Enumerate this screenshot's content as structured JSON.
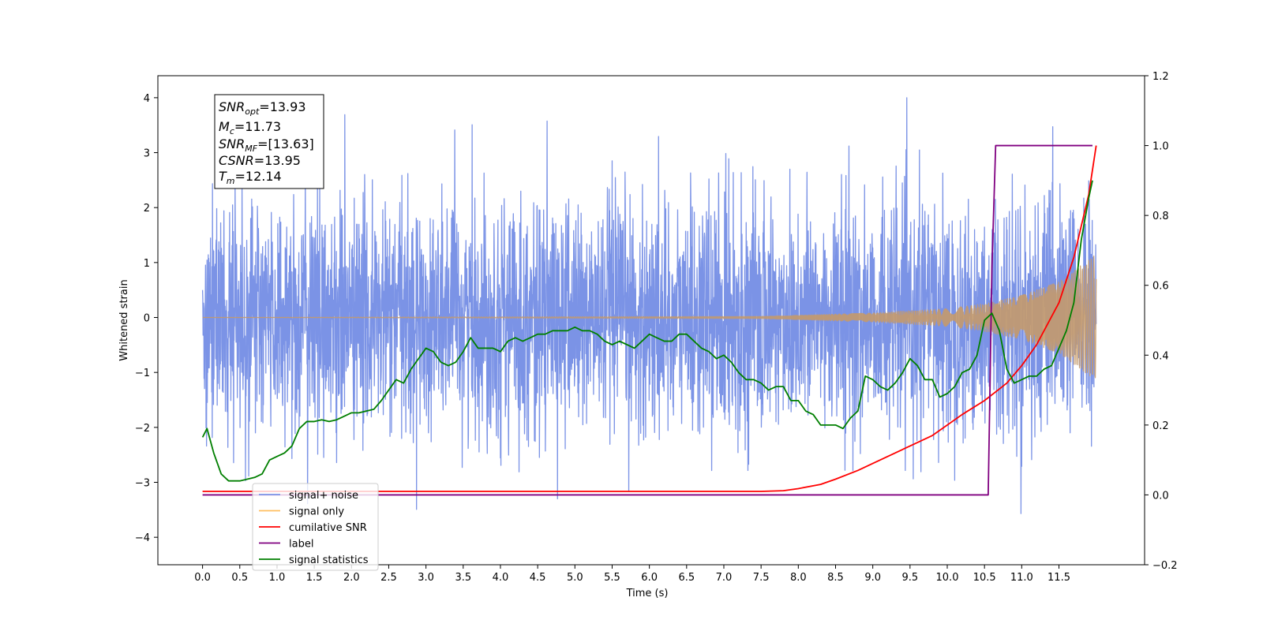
{
  "chart_data": {
    "type": "line",
    "title": "",
    "xlabel": "Time (s)",
    "ylabel_left": "Whitened strain",
    "ylabel_right": "",
    "xlim": [
      -0.6,
      12.65
    ],
    "ylim_left": [
      -4.5,
      4.4
    ],
    "ylim_right": [
      -0.2,
      1.2
    ],
    "x_ticks": [
      "0.0",
      "0.5",
      "1.0",
      "1.5",
      "2.0",
      "2.5",
      "3.0",
      "3.5",
      "4.0",
      "4.5",
      "5.0",
      "5.5",
      "6.0",
      "6.5",
      "7.0",
      "7.5",
      "8.0",
      "8.5",
      "9.0",
      "9.5",
      "10.0",
      "10.5",
      "11.0",
      "11.5"
    ],
    "y_ticks_left": [
      "4",
      "3",
      "2",
      "1",
      "0",
      "−1",
      "−2",
      "−3",
      "−4"
    ],
    "y_ticks_right": [
      "1.2",
      "1.0",
      "0.8",
      "0.6",
      "0.4",
      "0.2",
      "0.0",
      "−0.2"
    ],
    "legend_position": "lower-left",
    "annotation": {
      "snr_opt": {
        "main": "SNR",
        "sub": "opt",
        "value": "=13.93"
      },
      "mc": {
        "main": "M",
        "sub": "c",
        "value": "=11.73"
      },
      "snr_mf": {
        "main": "SNR",
        "sub": "MF",
        "value": "=[13.63]"
      },
      "csnr": {
        "main": "CSNR",
        "sub": "",
        "value": "=13.95"
      },
      "tm": {
        "main": "T",
        "sub": "m",
        "value": "=12.14"
      }
    },
    "series": [
      {
        "name": "signal+ noise",
        "color": "#7b93e6",
        "axis": "left",
        "kind": "gaussian-noise",
        "t_start": 0.0,
        "t_end": 12.0,
        "std": 1.0
      },
      {
        "name": "signal only",
        "color": "#c49a6c",
        "axis": "left",
        "kind": "chirp-envelope",
        "t_start": 0.0,
        "t_end": 12.0,
        "envelope": {
          "t": [
            0,
            7.5,
            9.0,
            10.0,
            10.5,
            11.0,
            11.5,
            12.0
          ],
          "amp": [
            0.0,
            0.02,
            0.08,
            0.16,
            0.25,
            0.4,
            0.65,
            1.15
          ]
        }
      },
      {
        "name": "cumilative SNR",
        "color": "#ff0000",
        "axis": "right",
        "t": [
          0,
          7.5,
          7.8,
          8.0,
          8.3,
          8.5,
          8.8,
          9.0,
          9.3,
          9.5,
          9.8,
          10.0,
          10.2,
          10.5,
          10.8,
          11.0,
          11.2,
          11.5,
          11.7,
          11.9,
          12.0
        ],
        "values": [
          0.01,
          0.01,
          0.012,
          0.018,
          0.03,
          0.045,
          0.07,
          0.09,
          0.12,
          0.14,
          0.17,
          0.2,
          0.23,
          0.27,
          0.32,
          0.37,
          0.43,
          0.55,
          0.68,
          0.86,
          1.0
        ]
      },
      {
        "name": "label",
        "color": "#800080",
        "axis": "right",
        "t": [
          0,
          10.55,
          10.6,
          10.65,
          11.95
        ],
        "values": [
          0.0,
          0.0,
          0.65,
          1.0,
          1.0
        ]
      },
      {
        "name": "signal statistics",
        "color": "#007f00",
        "axis": "right",
        "t": [
          0.0,
          0.06,
          0.15,
          0.25,
          0.35,
          0.5,
          0.6,
          0.7,
          0.8,
          0.9,
          1.0,
          1.1,
          1.2,
          1.3,
          1.4,
          1.5,
          1.6,
          1.7,
          1.8,
          1.9,
          2.0,
          2.1,
          2.2,
          2.3,
          2.4,
          2.5,
          2.6,
          2.7,
          2.8,
          2.9,
          3.0,
          3.1,
          3.2,
          3.3,
          3.4,
          3.5,
          3.6,
          3.7,
          3.8,
          3.9,
          4.0,
          4.1,
          4.2,
          4.3,
          4.4,
          4.5,
          4.6,
          4.7,
          4.8,
          4.9,
          5.0,
          5.1,
          5.2,
          5.3,
          5.4,
          5.5,
          5.6,
          5.7,
          5.8,
          5.9,
          6.0,
          6.1,
          6.2,
          6.3,
          6.4,
          6.5,
          6.6,
          6.7,
          6.8,
          6.9,
          7.0,
          7.1,
          7.2,
          7.3,
          7.4,
          7.5,
          7.6,
          7.7,
          7.8,
          7.9,
          8.0,
          8.1,
          8.2,
          8.3,
          8.4,
          8.5,
          8.6,
          8.7,
          8.8,
          8.9,
          9.0,
          9.1,
          9.2,
          9.3,
          9.4,
          9.5,
          9.6,
          9.7,
          9.8,
          9.9,
          10.0,
          10.1,
          10.2,
          10.3,
          10.4,
          10.5,
          10.6,
          10.7,
          10.8,
          10.9,
          11.0,
          11.1,
          11.2,
          11.3,
          11.4,
          11.5,
          11.6,
          11.7,
          11.8,
          11.9,
          11.95
        ],
        "values": [
          0.165,
          0.19,
          0.12,
          0.06,
          0.04,
          0.04,
          0.045,
          0.05,
          0.06,
          0.1,
          0.11,
          0.12,
          0.14,
          0.19,
          0.21,
          0.21,
          0.215,
          0.21,
          0.215,
          0.225,
          0.235,
          0.235,
          0.24,
          0.245,
          0.27,
          0.3,
          0.33,
          0.32,
          0.36,
          0.39,
          0.42,
          0.41,
          0.38,
          0.37,
          0.38,
          0.41,
          0.45,
          0.42,
          0.42,
          0.42,
          0.41,
          0.44,
          0.45,
          0.44,
          0.45,
          0.46,
          0.46,
          0.47,
          0.47,
          0.47,
          0.48,
          0.47,
          0.47,
          0.46,
          0.44,
          0.43,
          0.44,
          0.43,
          0.42,
          0.44,
          0.46,
          0.45,
          0.44,
          0.44,
          0.46,
          0.46,
          0.44,
          0.42,
          0.41,
          0.39,
          0.4,
          0.38,
          0.35,
          0.33,
          0.33,
          0.32,
          0.3,
          0.31,
          0.31,
          0.27,
          0.27,
          0.24,
          0.23,
          0.2,
          0.2,
          0.2,
          0.19,
          0.22,
          0.24,
          0.34,
          0.33,
          0.31,
          0.3,
          0.32,
          0.35,
          0.39,
          0.37,
          0.33,
          0.33,
          0.28,
          0.29,
          0.31,
          0.35,
          0.36,
          0.4,
          0.5,
          0.52,
          0.47,
          0.36,
          0.32,
          0.33,
          0.34,
          0.34,
          0.36,
          0.37,
          0.42,
          0.47,
          0.55,
          0.73,
          0.85,
          0.9
        ]
      }
    ]
  }
}
